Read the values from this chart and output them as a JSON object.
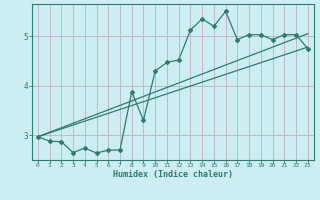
{
  "xlabel": "Humidex (Indice chaleur)",
  "bg_color": "#cceef2",
  "line_color": "#2d7d6e",
  "grid_color": "#c0afc0",
  "xlim": [
    -0.5,
    23.5
  ],
  "ylim": [
    2.5,
    5.65
  ],
  "yticks": [
    3,
    4,
    5
  ],
  "xticks": [
    0,
    1,
    2,
    3,
    4,
    5,
    6,
    7,
    8,
    9,
    10,
    11,
    12,
    13,
    14,
    15,
    16,
    17,
    18,
    19,
    20,
    21,
    22,
    23
  ],
  "curve_x": [
    0,
    1,
    2,
    3,
    4,
    5,
    6,
    7,
    8,
    9,
    10,
    11,
    12,
    13,
    14,
    15,
    16,
    17,
    18,
    19,
    20,
    21,
    22,
    23
  ],
  "curve_y": [
    2.97,
    2.88,
    2.87,
    2.65,
    2.74,
    2.64,
    2.7,
    2.7,
    3.88,
    3.3,
    4.3,
    4.47,
    4.52,
    5.12,
    5.35,
    5.2,
    5.5,
    4.93,
    5.03,
    5.03,
    4.93,
    5.03,
    5.03,
    4.75
  ],
  "line1_x": [
    0,
    23
  ],
  "line1_y": [
    2.97,
    5.05
  ],
  "line2_x": [
    0,
    23
  ],
  "line2_y": [
    2.97,
    4.78
  ]
}
